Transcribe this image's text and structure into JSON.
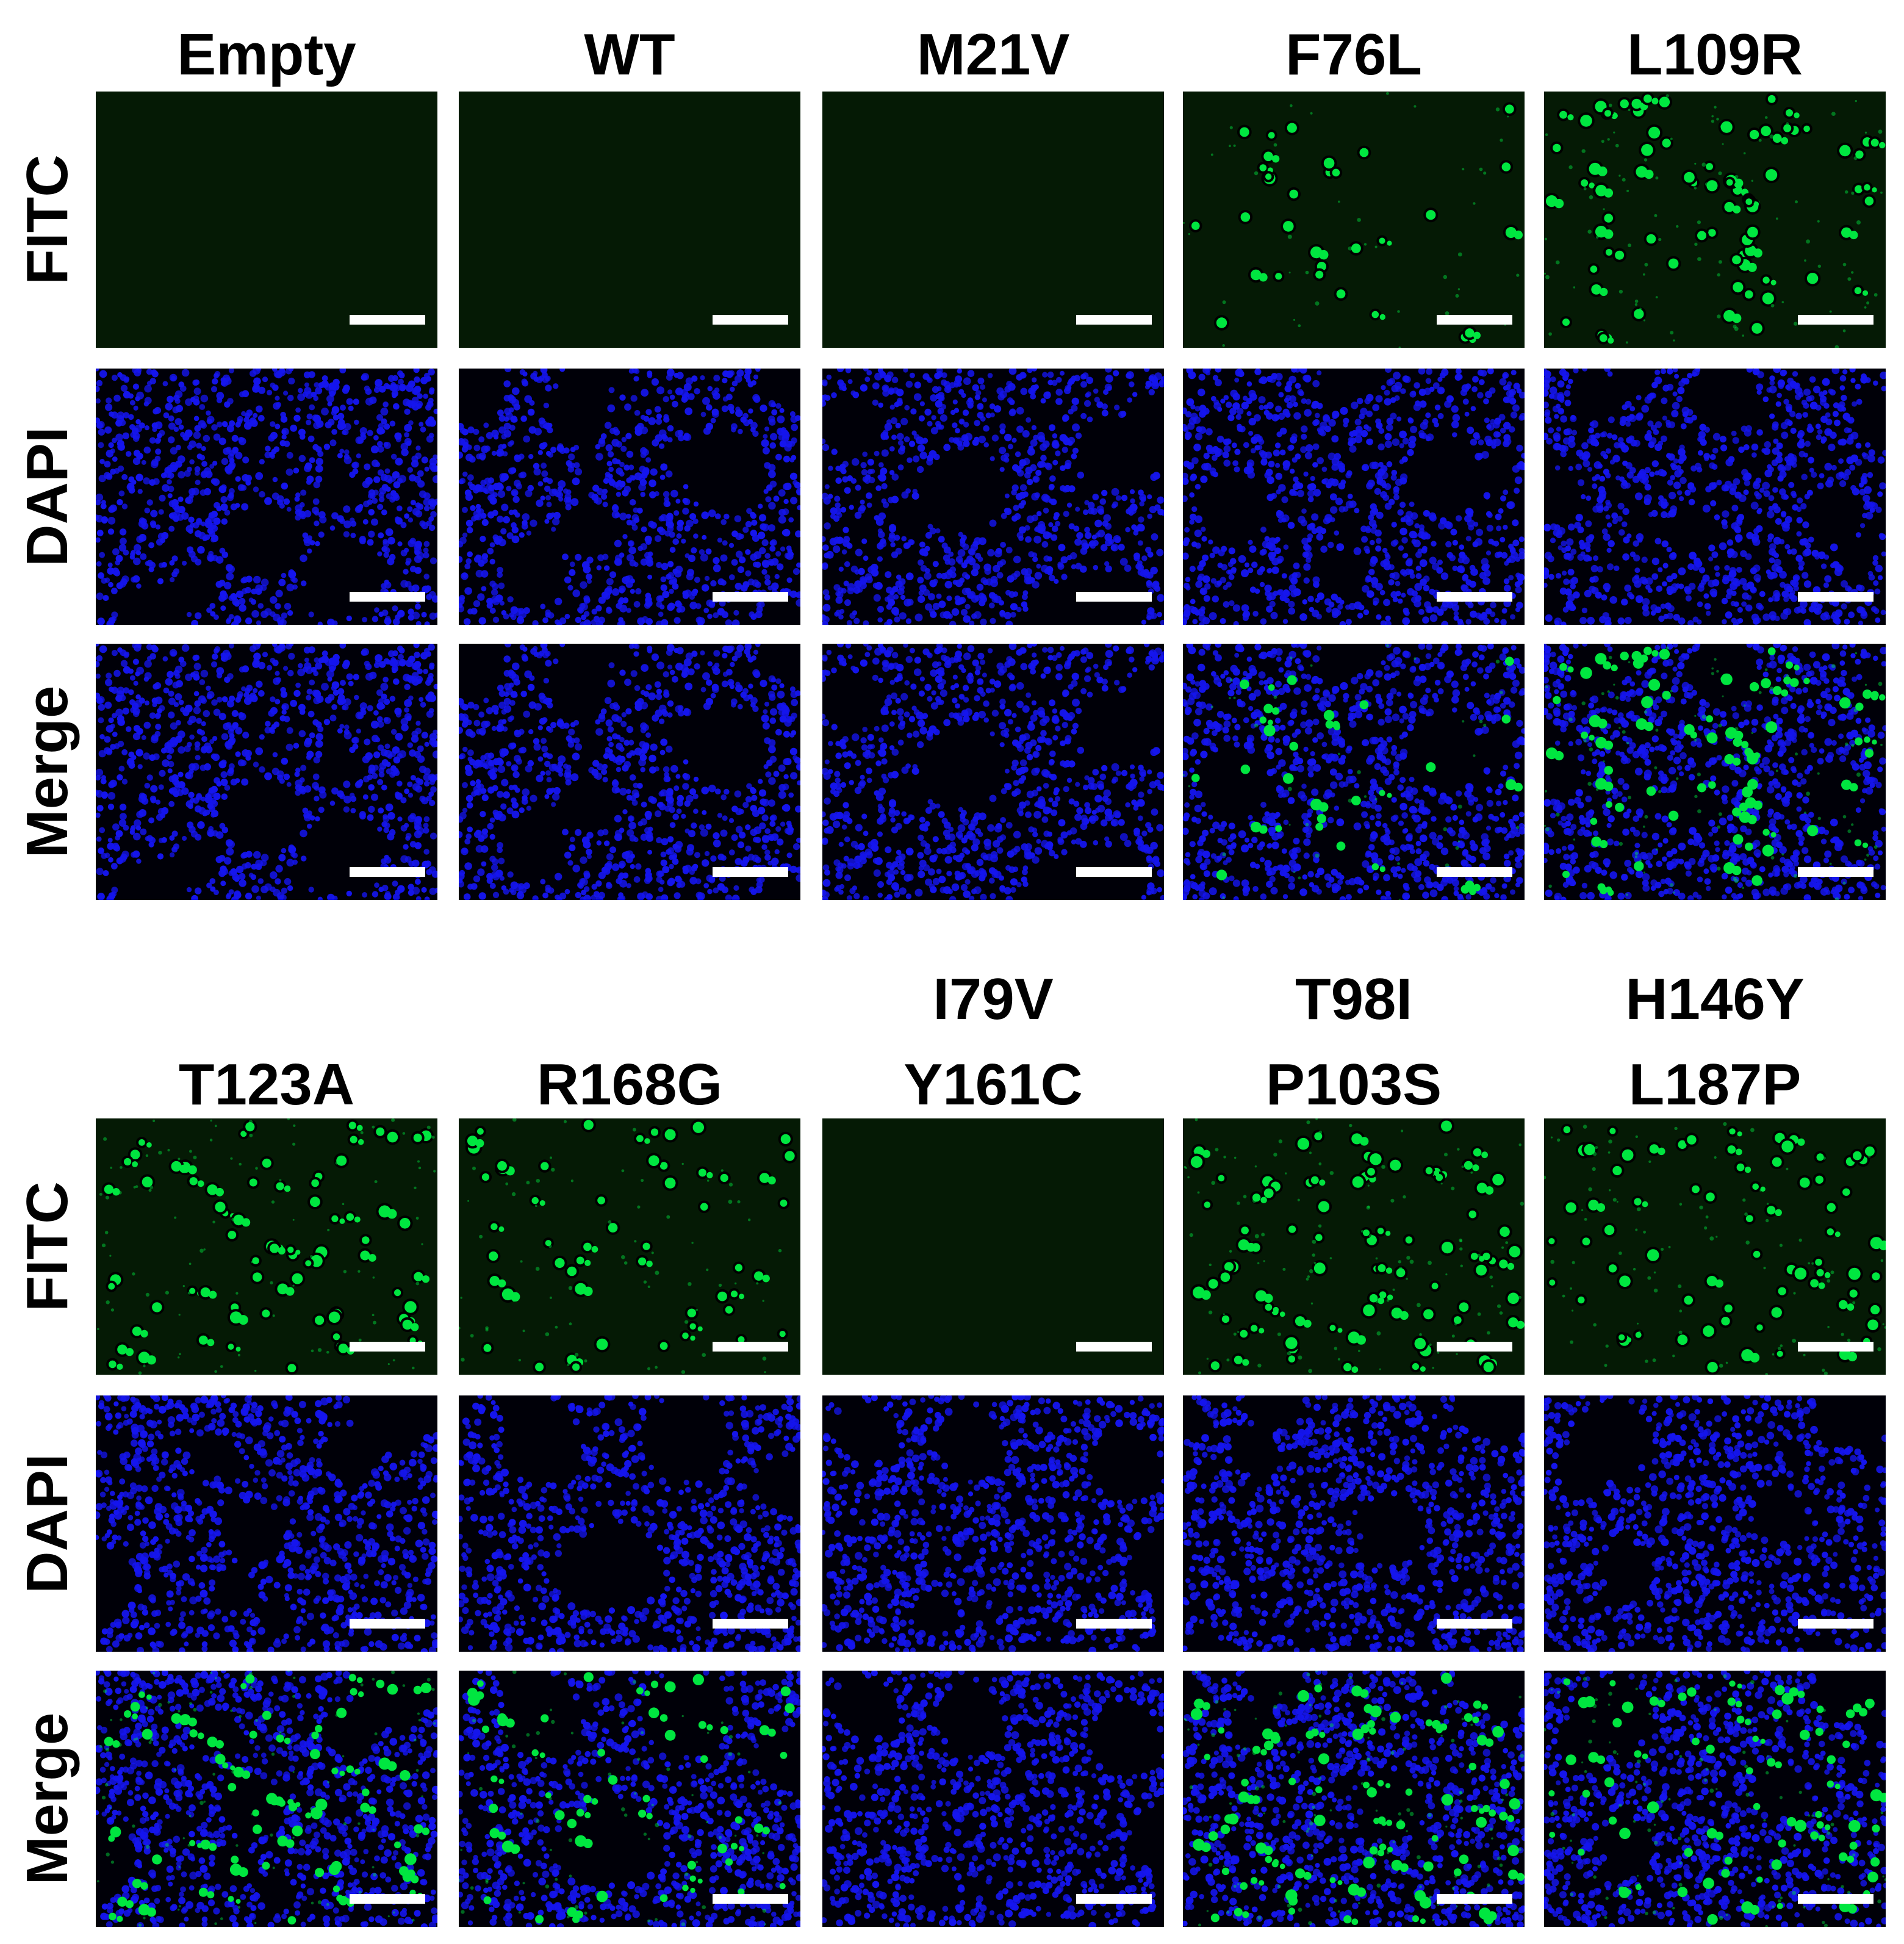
{
  "figure": {
    "groups": [
      {
        "columns": [
          {
            "label_lines": [
              "Empty"
            ],
            "fitc_level": 0.0
          },
          {
            "label_lines": [
              "WT"
            ],
            "fitc_level": 0.0
          },
          {
            "label_lines": [
              "M21V"
            ],
            "fitc_level": 0.0
          },
          {
            "label_lines": [
              "F76L"
            ],
            "fitc_level": 0.35
          },
          {
            "label_lines": [
              "L109R"
            ],
            "fitc_level": 0.85
          }
        ],
        "rows": [
          "FITC",
          "DAPI",
          "Merge"
        ]
      },
      {
        "columns": [
          {
            "label_lines": [
              "T123A"
            ],
            "fitc_level": 0.8
          },
          {
            "label_lines": [
              "R168G"
            ],
            "fitc_level": 0.6
          },
          {
            "label_lines": [
              "I79V",
              "Y161C"
            ],
            "fitc_level": 0.0
          },
          {
            "label_lines": [
              "T98I",
              "P103S"
            ],
            "fitc_level": 0.95
          },
          {
            "label_lines": [
              "H146Y",
              "L187P"
            ],
            "fitc_level": 0.8
          }
        ],
        "rows": [
          "FITC",
          "DAPI",
          "Merge"
        ]
      }
    ],
    "channels": {
      "FITC": {
        "color": "#00e640",
        "background": "#051a05"
      },
      "DAPI": {
        "color": "#1515ee",
        "background": "#000008"
      },
      "Merge": {
        "color": "#1515ee",
        "overlay": "#00e640"
      }
    },
    "scale_bar_color": "#ffffff"
  }
}
